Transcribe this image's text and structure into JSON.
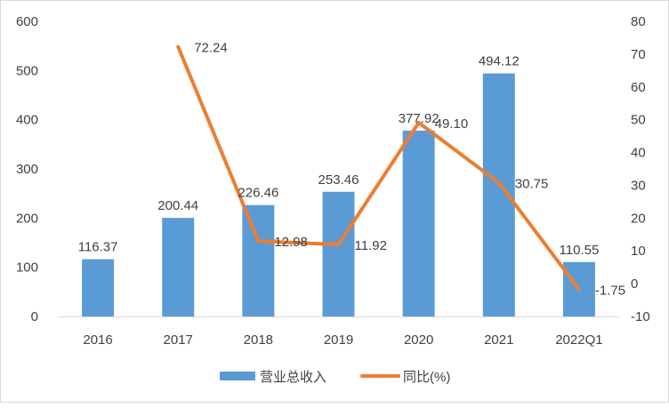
{
  "chart_data": {
    "type": "bar+line",
    "categories": [
      "2016",
      "2017",
      "2018",
      "2019",
      "2020",
      "2021",
      "2022Q1"
    ],
    "series": [
      {
        "name": "营业总收入",
        "type": "bar",
        "axis": "left",
        "values": [
          116.37,
          200.44,
          226.46,
          253.46,
          377.92,
          494.12,
          110.55
        ],
        "labels": [
          "116.37",
          "200.44",
          "226.46",
          "253.46",
          "377.92",
          "494.12",
          "110.55"
        ],
        "color": "#5b9bd5"
      },
      {
        "name": "同比(%)",
        "type": "line",
        "axis": "right",
        "values": [
          null,
          72.24,
          12.98,
          11.92,
          49.1,
          30.75,
          -1.75
        ],
        "labels": [
          "",
          "72.24",
          "12.98",
          "11.92",
          "49.10",
          "30.75",
          "-1.75"
        ],
        "color": "#ed7d31"
      }
    ],
    "y_left": {
      "range": [
        0,
        600
      ],
      "ticks": [
        "0",
        "100",
        "200",
        "300",
        "400",
        "500",
        "600"
      ]
    },
    "y_right": {
      "range": [
        -10,
        80
      ],
      "ticks": [
        "-10",
        "0",
        "10",
        "20",
        "30",
        "40",
        "50",
        "60",
        "70",
        "80"
      ]
    },
    "grid": false,
    "legend": "bottom"
  }
}
